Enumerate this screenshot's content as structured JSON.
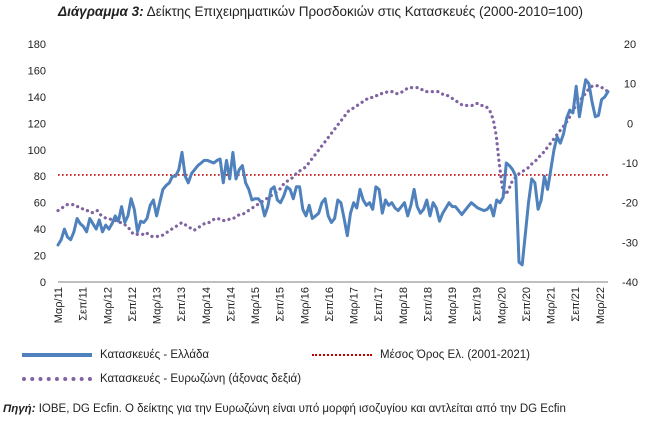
{
  "figure": {
    "title_lead": "Διάγραμμα 3:",
    "title_rest": "Δείκτης Επιχειρηματικών Προσδοκιών στις Κατασκευές (2000-2010=100)",
    "source_lead": "Πηγή:",
    "source_rest": "ΙΟΒΕ, DG Ecfin. Ο δείκτης για την Ευρωζώνη είναι υπό μορφή ισοζυγίου και αντλείται από την DG Ecfin"
  },
  "chart_data": {
    "type": "line",
    "title": "Διάγραμμα 3: Δείκτης Επιχειρηματικών Προσδοκιών στις Κατασκευές (2000-2010=100)",
    "x_labels": [
      "Μαρ/11",
      "Σεπ/11",
      "Μαρ/12",
      "Σεπ/12",
      "Μαρ/13",
      "Σεπ/13",
      "Μαρ/14",
      "Σεπ/14",
      "Μαρ/15",
      "Σεπ/15",
      "Μαρ/16",
      "Σεπ/16",
      "Μαρ/17",
      "Σεπ/17",
      "Μαρ/18",
      "Σεπ/18",
      "Μαρ/19",
      "Σεπ/19",
      "Μαρ/20",
      "Σεπ/20",
      "Μαρ/21",
      "Σεπ/21",
      "Μαρ/22"
    ],
    "ylim_left": [
      0,
      180
    ],
    "yticks_left": [
      0,
      20,
      40,
      60,
      80,
      100,
      120,
      140,
      160,
      180
    ],
    "ylim_right": [
      -40,
      20
    ],
    "yticks_right": [
      -40,
      -30,
      -20,
      -10,
      0,
      10,
      20
    ],
    "series": [
      {
        "name": "Κατασκευές  - Ελλάδα",
        "axis": "left",
        "color": "#4f81bd",
        "values": [
          28,
          32,
          40,
          34,
          32,
          38,
          48,
          44,
          42,
          38,
          48,
          44,
          40,
          47,
          38,
          43,
          40,
          44,
          50,
          46,
          57,
          45,
          50,
          63,
          55,
          38,
          46,
          45,
          48,
          58,
          62,
          50,
          60,
          70,
          73,
          75,
          80,
          80,
          85,
          98,
          80,
          75,
          82,
          85,
          88,
          90,
          92,
          92,
          91,
          90,
          92,
          93,
          75,
          92,
          78,
          98,
          78,
          85,
          88,
          75,
          70,
          62,
          63,
          63,
          60,
          50,
          57,
          70,
          72,
          62,
          60,
          65,
          72,
          70,
          63,
          72,
          72,
          55,
          50,
          58,
          48,
          50,
          52,
          60,
          63,
          50,
          45,
          48,
          62,
          60,
          48,
          35,
          52,
          60,
          56,
          70,
          62,
          58,
          60,
          55,
          72,
          70,
          52,
          62,
          58,
          60,
          56,
          54,
          57,
          60,
          50,
          58,
          70,
          57,
          52,
          55,
          62,
          50,
          60,
          56,
          46,
          52,
          56,
          60,
          57,
          57,
          54,
          51,
          54,
          57,
          60,
          58,
          56,
          55,
          54,
          55,
          58,
          50,
          62,
          60,
          64,
          90,
          88,
          85,
          80,
          15,
          13,
          36,
          60,
          78,
          75,
          55,
          62,
          80,
          70,
          85,
          100,
          110,
          105,
          112,
          124,
          130,
          128,
          148,
          125,
          140,
          153,
          150,
          136,
          125,
          126,
          138,
          140,
          144
        ]
      },
      {
        "name": "Κατασκευές - Ευρωζώνη (άξονας δεξιά)",
        "axis": "right",
        "color": "#8064a2",
        "values": [
          -22,
          -21.5,
          -21,
          -20.5,
          -20.5,
          -20.5,
          -21,
          -21,
          -21.5,
          -22,
          -22,
          -22.5,
          -22.5,
          -22,
          -23,
          -23.5,
          -24,
          -24,
          -24.5,
          -24.5,
          -25,
          -25,
          -25.5,
          -26,
          -27,
          -28,
          -28,
          -28,
          -28,
          -27.5,
          -28,
          -28.5,
          -28.5,
          -28.5,
          -28.5,
          -28,
          -27.5,
          -27,
          -26.5,
          -26,
          -25.5,
          -25,
          -25.5,
          -26,
          -26.5,
          -27,
          -26.5,
          -26,
          -25.5,
          -25,
          -25,
          -24.5,
          -24,
          -24,
          -24.5,
          -24.5,
          -24.5,
          -24,
          -24,
          -23.5,
          -23,
          -23,
          -22.5,
          -22,
          -21.5,
          -21,
          -20.5,
          -20,
          -19.5,
          -19,
          -18.5,
          -18,
          -17.5,
          -17,
          -16,
          -15,
          -14.5,
          -14,
          -13.5,
          -12.5,
          -12,
          -11.5,
          -11,
          -10,
          -9,
          -8,
          -7,
          -6,
          -5,
          -4,
          -3,
          -2,
          -1,
          0,
          1,
          2,
          3,
          3.5,
          4,
          4.5,
          5,
          5.5,
          6,
          6.5,
          6.5,
          7,
          7,
          7.5,
          7.5,
          8,
          8,
          8,
          7.5,
          7.5,
          8,
          8.5,
          9,
          9,
          9,
          9,
          8.5,
          8.5,
          8,
          8,
          8,
          8,
          8,
          7.5,
          7,
          7,
          6.5,
          6,
          5.5,
          5,
          4.5,
          4.5,
          4.5,
          4.5,
          5,
          5,
          4.5,
          4.5,
          4,
          3,
          1,
          -3,
          -10,
          -16,
          -18,
          -17,
          -15,
          -14,
          -13,
          -12.5,
          -12,
          -11.5,
          -11,
          -10,
          -9.5,
          -8.5,
          -8,
          -7,
          -6,
          -5,
          -4,
          -3,
          -2,
          -1,
          0,
          1,
          3,
          4,
          5,
          6,
          7,
          8,
          9,
          9.5,
          9.5,
          9.5,
          9,
          8.5,
          8
        ]
      },
      {
        "name": "Μέσος Όρος Ελ. (2001-2021)",
        "axis": "left",
        "color": "#c00000",
        "constant": 81
      }
    ],
    "legend": [
      "Κατασκευές  - Ελλάδα",
      "Μέσος Όρος Ελ. (2001-2021)",
      "Κατασκευές - Ευρωζώνη (άξονας δεξιά)"
    ],
    "legend_position": "bottom",
    "grid": false
  }
}
